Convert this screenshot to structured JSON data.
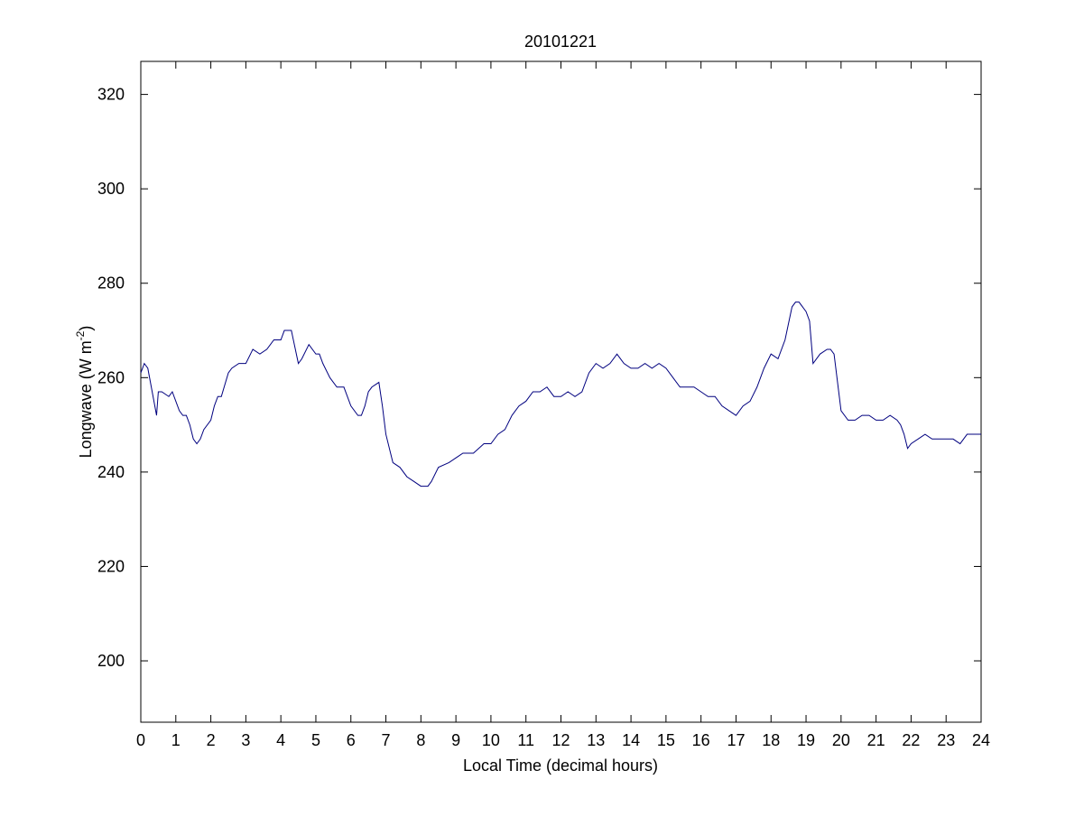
{
  "chart_data": {
    "type": "line",
    "title": "20101221",
    "xlabel": "Local Time (decimal hours)",
    "ylabel": "Longwave (W m^-2)",
    "ylabel_parts": {
      "main": "Longwave (W m",
      "sup": "-2",
      "close": ")"
    },
    "xlim": [
      0,
      24
    ],
    "ylim": [
      187,
      327
    ],
    "x_ticks": [
      0,
      1,
      2,
      3,
      4,
      5,
      6,
      7,
      8,
      9,
      10,
      11,
      12,
      13,
      14,
      15,
      16,
      17,
      18,
      19,
      20,
      21,
      22,
      23,
      24
    ],
    "x_tick_labels": [
      "0",
      "1",
      "2",
      "3",
      "4",
      "5",
      "6",
      "7",
      "8",
      "9",
      "10",
      "11",
      "12",
      "13",
      "14",
      "15",
      "16",
      "17",
      "18",
      "19",
      "20",
      "21",
      "22",
      "23",
      "24"
    ],
    "y_ticks": [
      200,
      220,
      240,
      260,
      280,
      300,
      320
    ],
    "y_tick_labels": [
      "200",
      "220",
      "240",
      "260",
      "280",
      "300",
      "320"
    ],
    "grid": false,
    "line_color": "#00007f",
    "series": [
      {
        "x": [
          0,
          0.1,
          0.2,
          0.3,
          0.45,
          0.5,
          0.6,
          0.8,
          0.9,
          1.0,
          1.1,
          1.2,
          1.3,
          1.4,
          1.5,
          1.6,
          1.7,
          1.8,
          2.0,
          2.1,
          2.2,
          2.3,
          2.5,
          2.6,
          2.8,
          3.0,
          3.2,
          3.4,
          3.6,
          3.8,
          4.0,
          4.1,
          4.2,
          4.3,
          4.5,
          4.6,
          4.8,
          5.0,
          5.1,
          5.2,
          5.4,
          5.6,
          5.8,
          6.0,
          6.2,
          6.3,
          6.4,
          6.5,
          6.6,
          6.8,
          6.9,
          7.0,
          7.2,
          7.4,
          7.6,
          7.8,
          8.0,
          8.2,
          8.3,
          8.5,
          8.8,
          9.0,
          9.2,
          9.5,
          9.8,
          10.0,
          10.2,
          10.4,
          10.6,
          10.8,
          11.0,
          11.2,
          11.4,
          11.6,
          11.8,
          12.0,
          12.2,
          12.4,
          12.6,
          12.8,
          13.0,
          13.2,
          13.4,
          13.6,
          13.7,
          13.8,
          14.0,
          14.2,
          14.4,
          14.6,
          14.8,
          15.0,
          15.2,
          15.4,
          15.6,
          15.8,
          16.0,
          16.2,
          16.4,
          16.6,
          16.8,
          17.0,
          17.2,
          17.4,
          17.6,
          17.8,
          18.0,
          18.2,
          18.4,
          18.6,
          18.7,
          18.8,
          19.0,
          19.1,
          19.2,
          19.4,
          19.6,
          19.7,
          19.8,
          20.0,
          20.2,
          20.4,
          20.6,
          20.8,
          21.0,
          21.2,
          21.4,
          21.6,
          21.7,
          21.8,
          21.9,
          22.0,
          22.2,
          22.4,
          22.6,
          22.8,
          23.0,
          23.2,
          23.4,
          23.6,
          23.8,
          24.0
        ],
        "y": [
          261,
          263,
          262,
          258,
          252,
          257,
          257,
          256,
          257,
          255,
          253,
          252,
          252,
          250,
          247,
          246,
          247,
          249,
          251,
          254,
          256,
          256,
          261,
          262,
          263,
          263,
          266,
          265,
          266,
          268,
          268,
          270,
          270,
          270,
          263,
          264,
          267,
          265,
          265,
          263,
          260,
          258,
          258,
          254,
          252,
          252,
          254,
          257,
          258,
          259,
          254,
          248,
          242,
          241,
          239,
          238,
          237,
          237,
          238,
          241,
          242,
          243,
          244,
          244,
          246,
          246,
          248,
          249,
          252,
          254,
          255,
          257,
          257,
          258,
          256,
          256,
          257,
          256,
          257,
          261,
          263,
          262,
          263,
          265,
          264,
          263,
          262,
          262,
          263,
          262,
          263,
          262,
          260,
          258,
          258,
          258,
          257,
          256,
          256,
          254,
          253,
          252,
          254,
          255,
          258,
          262,
          265,
          264,
          268,
          275,
          276,
          276,
          274,
          272,
          263,
          265,
          266,
          266,
          265,
          253,
          251,
          251,
          252,
          252,
          251,
          251,
          252,
          251,
          250,
          248,
          245,
          246,
          247,
          248,
          247,
          247,
          247,
          247,
          246,
          248,
          248,
          248
        ]
      }
    ]
  }
}
